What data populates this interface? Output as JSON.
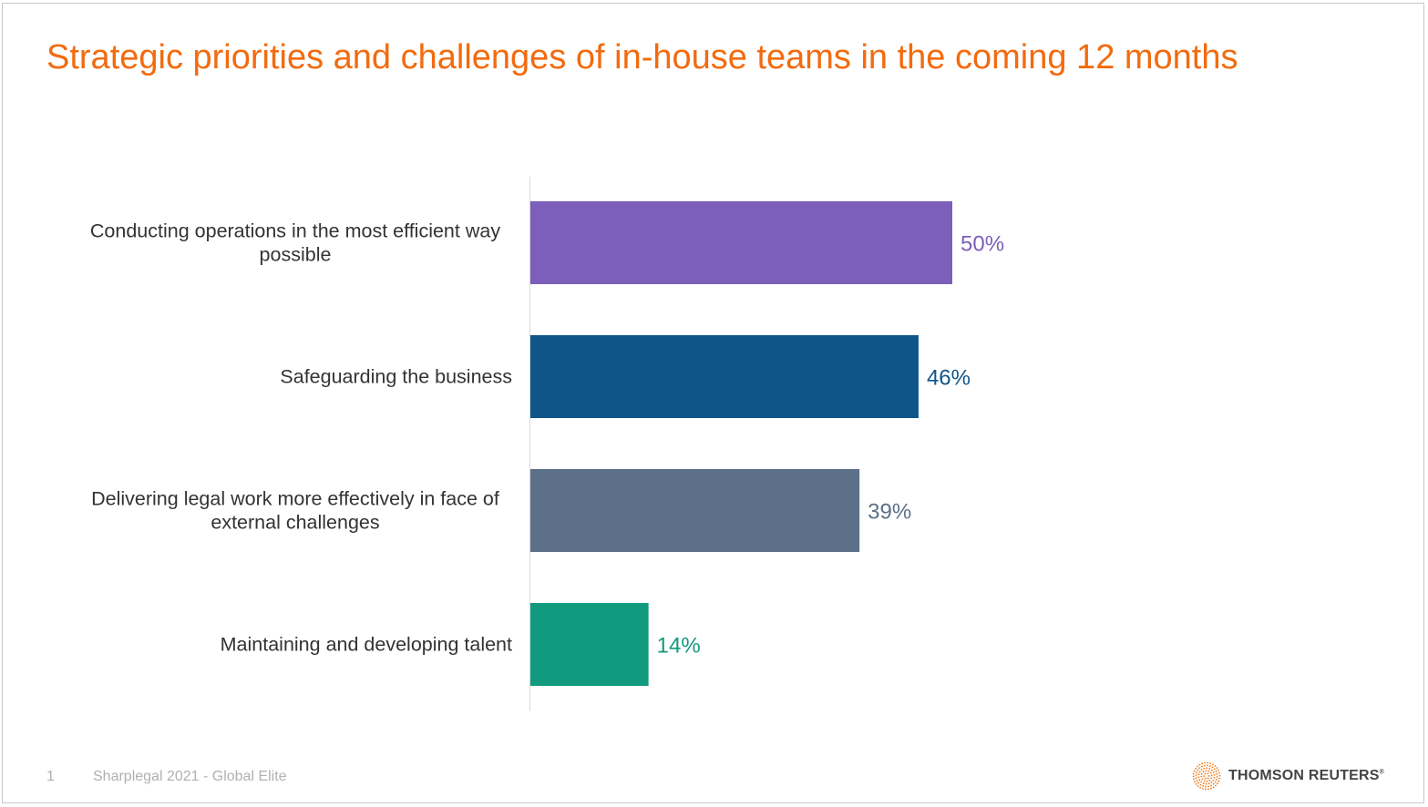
{
  "title": "Strategic priorities and challenges of in-house teams in the coming 12 months",
  "footer": {
    "page_number": "1",
    "source": "Sharplegal 2021 - Global Elite"
  },
  "logo": {
    "text": "THOMSON REUTERS",
    "mark": "®"
  },
  "chart_data": {
    "type": "bar",
    "orientation": "horizontal",
    "categories": [
      [
        "Conducting operations in the most efficient way",
        "possible"
      ],
      [
        "Safeguarding the business"
      ],
      [
        "Delivering legal work more effectively in face of",
        "external challenges"
      ],
      [
        "Maintaining and developing talent"
      ]
    ],
    "values": [
      50,
      46,
      39,
      14
    ],
    "value_labels": [
      "50%",
      "46%",
      "39%",
      "14%"
    ],
    "colors": [
      "#7b5fbb",
      "#0f558a",
      "#5c7189",
      "#129a7e"
    ],
    "unit": "%",
    "xlim": [
      0,
      100
    ],
    "grid": false
  }
}
